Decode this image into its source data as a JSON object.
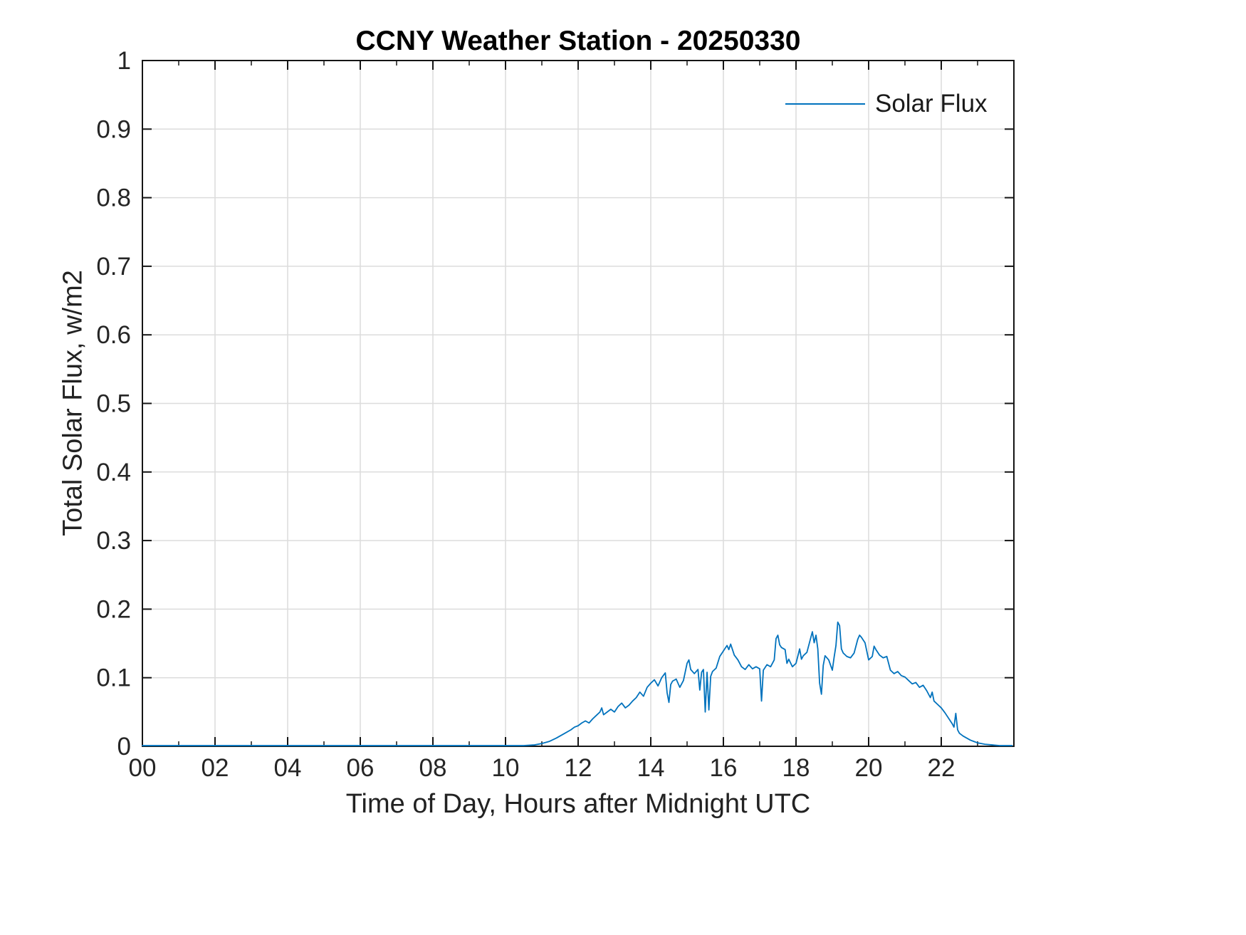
{
  "chart_data": {
    "type": "line",
    "title": "CCNY Weather Station - 20250330",
    "xlabel": "Time of Day, Hours after Midnight UTC",
    "ylabel": "Total Solar Flux, w/m2",
    "xlim": [
      0,
      24
    ],
    "ylim": [
      0,
      1
    ],
    "grid": true,
    "xticks": {
      "values": [
        0,
        2,
        4,
        6,
        8,
        10,
        12,
        14,
        16,
        18,
        20,
        22
      ],
      "labels": [
        "00",
        "02",
        "04",
        "06",
        "08",
        "10",
        "12",
        "14",
        "16",
        "18",
        "20",
        "22"
      ]
    },
    "xminor_step": 1,
    "yticks": {
      "values": [
        0,
        0.1,
        0.2,
        0.3,
        0.4,
        0.5,
        0.6,
        0.7,
        0.8,
        0.9,
        1
      ],
      "labels": [
        "0",
        "0.1",
        "0.2",
        "0.3",
        "0.4",
        "0.5",
        "0.6",
        "0.7",
        "0.8",
        "0.9",
        "1"
      ]
    },
    "colors": {
      "series": "#0072BD",
      "grid": "#dcdcdc",
      "axis": "#151515",
      "tick_text": "#252525"
    },
    "legend": {
      "position": "northeast",
      "entries": [
        {
          "label": "Solar Flux",
          "color": "#0072BD"
        }
      ]
    },
    "series": [
      {
        "name": "Solar Flux",
        "color": "#0072BD",
        "points": [
          [
            0,
            0.001
          ],
          [
            1,
            0.001
          ],
          [
            2,
            0.001
          ],
          [
            3,
            0.001
          ],
          [
            4,
            0.001
          ],
          [
            5,
            0.001
          ],
          [
            6,
            0.001
          ],
          [
            7,
            0.001
          ],
          [
            8,
            0.001
          ],
          [
            9,
            0.001
          ],
          [
            10,
            0.001
          ],
          [
            10.5,
            0.001
          ],
          [
            10.8,
            0.002
          ],
          [
            11,
            0.004
          ],
          [
            11.2,
            0.007
          ],
          [
            11.4,
            0.012
          ],
          [
            11.6,
            0.018
          ],
          [
            11.8,
            0.024
          ],
          [
            11.9,
            0.028
          ],
          [
            12,
            0.03
          ],
          [
            12.1,
            0.034
          ],
          [
            12.2,
            0.037
          ],
          [
            12.3,
            0.034
          ],
          [
            12.4,
            0.04
          ],
          [
            12.5,
            0.045
          ],
          [
            12.6,
            0.05
          ],
          [
            12.65,
            0.056
          ],
          [
            12.7,
            0.046
          ],
          [
            12.8,
            0.05
          ],
          [
            12.9,
            0.054
          ],
          [
            13,
            0.05
          ],
          [
            13.1,
            0.058
          ],
          [
            13.2,
            0.063
          ],
          [
            13.3,
            0.056
          ],
          [
            13.4,
            0.06
          ],
          [
            13.5,
            0.066
          ],
          [
            13.6,
            0.071
          ],
          [
            13.7,
            0.079
          ],
          [
            13.8,
            0.073
          ],
          [
            13.9,
            0.086
          ],
          [
            14,
            0.092
          ],
          [
            14.1,
            0.097
          ],
          [
            14.2,
            0.088
          ],
          [
            14.3,
            0.1
          ],
          [
            14.4,
            0.107
          ],
          [
            14.45,
            0.078
          ],
          [
            14.5,
            0.064
          ],
          [
            14.55,
            0.09
          ],
          [
            14.6,
            0.095
          ],
          [
            14.7,
            0.098
          ],
          [
            14.8,
            0.086
          ],
          [
            14.9,
            0.096
          ],
          [
            15,
            0.121
          ],
          [
            15.05,
            0.126
          ],
          [
            15.1,
            0.112
          ],
          [
            15.2,
            0.106
          ],
          [
            15.3,
            0.112
          ],
          [
            15.35,
            0.082
          ],
          [
            15.4,
            0.108
          ],
          [
            15.45,
            0.112
          ],
          [
            15.5,
            0.05
          ],
          [
            15.55,
            0.108
          ],
          [
            15.6,
            0.053
          ],
          [
            15.65,
            0.102
          ],
          [
            15.7,
            0.109
          ],
          [
            15.8,
            0.114
          ],
          [
            15.9,
            0.131
          ],
          [
            16,
            0.139
          ],
          [
            16.1,
            0.147
          ],
          [
            16.15,
            0.141
          ],
          [
            16.2,
            0.149
          ],
          [
            16.3,
            0.133
          ],
          [
            16.4,
            0.126
          ],
          [
            16.5,
            0.116
          ],
          [
            16.6,
            0.112
          ],
          [
            16.7,
            0.119
          ],
          [
            16.8,
            0.113
          ],
          [
            16.9,
            0.116
          ],
          [
            17,
            0.113
          ],
          [
            17.05,
            0.066
          ],
          [
            17.1,
            0.111
          ],
          [
            17.2,
            0.119
          ],
          [
            17.3,
            0.116
          ],
          [
            17.4,
            0.126
          ],
          [
            17.45,
            0.157
          ],
          [
            17.5,
            0.162
          ],
          [
            17.55,
            0.148
          ],
          [
            17.6,
            0.144
          ],
          [
            17.7,
            0.141
          ],
          [
            17.75,
            0.121
          ],
          [
            17.8,
            0.127
          ],
          [
            17.9,
            0.116
          ],
          [
            18,
            0.121
          ],
          [
            18.1,
            0.142
          ],
          [
            18.15,
            0.127
          ],
          [
            18.2,
            0.132
          ],
          [
            18.3,
            0.137
          ],
          [
            18.4,
            0.157
          ],
          [
            18.45,
            0.167
          ],
          [
            18.5,
            0.151
          ],
          [
            18.55,
            0.162
          ],
          [
            18.6,
            0.142
          ],
          [
            18.65,
            0.092
          ],
          [
            18.7,
            0.076
          ],
          [
            18.75,
            0.118
          ],
          [
            18.8,
            0.132
          ],
          [
            18.9,
            0.126
          ],
          [
            19,
            0.111
          ],
          [
            19.05,
            0.13
          ],
          [
            19.1,
            0.147
          ],
          [
            19.15,
            0.181
          ],
          [
            19.2,
            0.176
          ],
          [
            19.25,
            0.142
          ],
          [
            19.3,
            0.136
          ],
          [
            19.4,
            0.131
          ],
          [
            19.5,
            0.129
          ],
          [
            19.6,
            0.136
          ],
          [
            19.7,
            0.156
          ],
          [
            19.75,
            0.162
          ],
          [
            19.8,
            0.159
          ],
          [
            19.9,
            0.151
          ],
          [
            20,
            0.126
          ],
          [
            20.1,
            0.131
          ],
          [
            20.15,
            0.146
          ],
          [
            20.2,
            0.141
          ],
          [
            20.3,
            0.133
          ],
          [
            20.4,
            0.129
          ],
          [
            20.5,
            0.131
          ],
          [
            20.6,
            0.111
          ],
          [
            20.7,
            0.106
          ],
          [
            20.8,
            0.109
          ],
          [
            20.9,
            0.103
          ],
          [
            21,
            0.101
          ],
          [
            21.1,
            0.096
          ],
          [
            21.2,
            0.091
          ],
          [
            21.3,
            0.093
          ],
          [
            21.4,
            0.086
          ],
          [
            21.5,
            0.089
          ],
          [
            21.6,
            0.081
          ],
          [
            21.7,
            0.071
          ],
          [
            21.75,
            0.079
          ],
          [
            21.8,
            0.066
          ],
          [
            21.9,
            0.061
          ],
          [
            22,
            0.056
          ],
          [
            22.1,
            0.049
          ],
          [
            22.2,
            0.041
          ],
          [
            22.3,
            0.033
          ],
          [
            22.35,
            0.028
          ],
          [
            22.4,
            0.048
          ],
          [
            22.45,
            0.024
          ],
          [
            22.5,
            0.019
          ],
          [
            22.6,
            0.015
          ],
          [
            22.7,
            0.012
          ],
          [
            22.8,
            0.009
          ],
          [
            22.9,
            0.007
          ],
          [
            23,
            0.005
          ],
          [
            23.1,
            0.004
          ],
          [
            23.2,
            0.003
          ],
          [
            23.4,
            0.002
          ],
          [
            23.6,
            0.001
          ],
          [
            23.8,
            0.001
          ],
          [
            23.95,
            0.001
          ]
        ]
      }
    ]
  }
}
